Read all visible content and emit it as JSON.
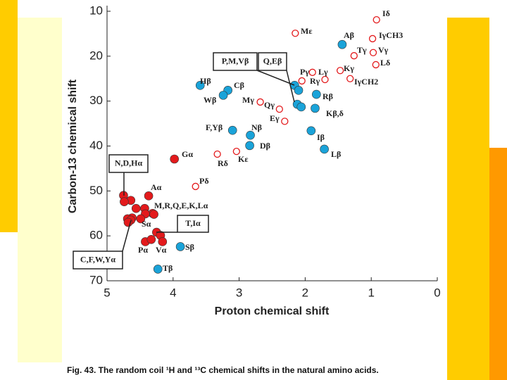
{
  "chart_data": {
    "type": "scatter",
    "x_label": "Proton chemical shift",
    "y_label": "Carbon-13 chemical shift",
    "caption": "Fig. 43. The random coil ¹H and ¹³C chemical shifts in the natural amino acids.",
    "xlim": [
      5,
      0
    ],
    "xticks": [
      5,
      4,
      3,
      2,
      1,
      0
    ],
    "ylim": [
      10,
      70
    ],
    "yticks": [
      10,
      20,
      30,
      40,
      50,
      60,
      70
    ],
    "series": [
      {
        "color": "#e31a1c",
        "marker": "filled",
        "x": [
          3.98,
          4.37,
          4.75,
          4.64,
          4.74,
          4.56,
          4.43,
          4.31,
          4.42,
          4.29,
          4.49,
          4.62,
          4.69,
          4.64,
          4.68,
          4.25,
          4.19,
          4.42,
          4.33,
          4.16
        ],
        "values": [
          42.9,
          51.1,
          51.0,
          52.1,
          52.4,
          53.9,
          53.9,
          55.0,
          55.1,
          55.2,
          56.2,
          56.0,
          56.2,
          56.5,
          57.0,
          59.2,
          59.9,
          61.3,
          60.8,
          61.3
        ]
      },
      {
        "color": "#e31a1c",
        "marker": "open",
        "x": [
          0.92,
          2.15,
          0.98,
          1.26,
          0.97,
          0.93,
          1.47,
          1.32,
          1.89,
          1.7,
          2.05,
          2.68,
          2.39,
          2.31,
          3.66,
          3.04,
          3.33
        ],
        "values": [
          11.9,
          14.9,
          16.1,
          19.9,
          19.2,
          21.9,
          23.2,
          25.0,
          23.6,
          25.2,
          25.5,
          30.2,
          31.8,
          34.5,
          49.0,
          41.2,
          41.8
        ]
      },
      {
        "color": "#1aa3d9",
        "marker": "filled",
        "x": [
          1.44,
          3.59,
          3.17,
          3.24,
          2.16,
          2.1,
          2.12,
          2.06,
          1.83,
          1.85,
          2.83,
          2.84,
          3.1,
          1.91,
          1.71,
          3.89,
          4.23
        ],
        "values": [
          17.4,
          26.5,
          27.6,
          28.7,
          26.5,
          27.6,
          30.7,
          31.3,
          28.5,
          31.6,
          37.6,
          39.9,
          36.5,
          36.6,
          40.7,
          62.4,
          67.4
        ]
      }
    ],
    "annotations": [
      "Iδ",
      "Mε",
      "Aβ",
      "IγCH3",
      "Tγ",
      "Vγ",
      "Lδ",
      "Kγ",
      "IγCH2",
      "Pγ",
      "Lγ",
      "Rγ",
      "Rβ",
      "Kβ,δ",
      "Hβ",
      "Cβ",
      "Wβ",
      "Mγ",
      "Qγ",
      "Eγ",
      "Nβ",
      "F,Yβ",
      "Dβ",
      "Iβ",
      "Lβ",
      "Gα",
      "Kε",
      "Rδ",
      "Pδ",
      "Aα",
      "M,R,Q,E,K,Lα",
      "Sα",
      "Pα",
      "Vα",
      "Sβ",
      "Tβ"
    ],
    "boxed_annotations": [
      "P,M,Vβ",
      "Q,Eβ",
      "N,D,Hα",
      "T,Iα",
      "C,F,W,Yα"
    ]
  }
}
